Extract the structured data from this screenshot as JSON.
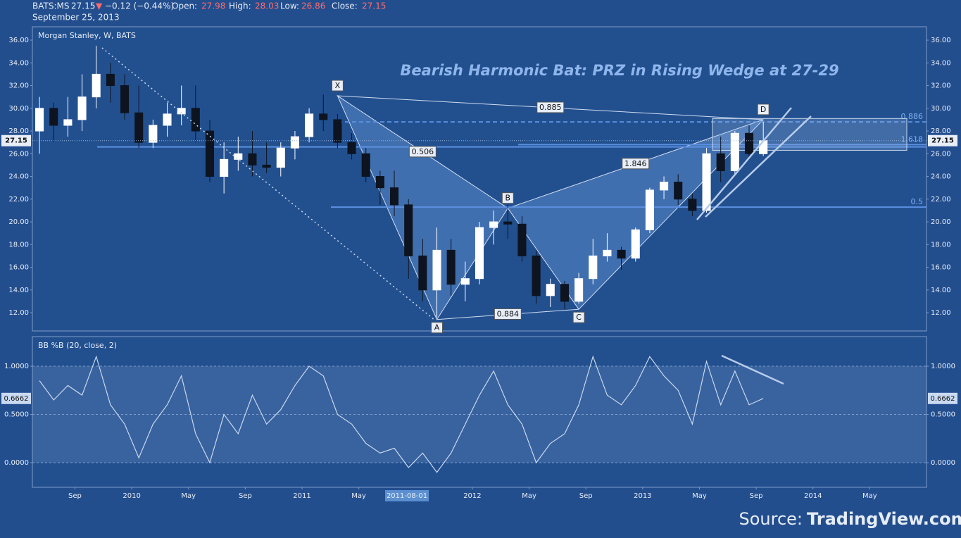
{
  "header": {
    "symbol": "BATS:MS",
    "last": "27.15",
    "arrow": "▼",
    "change": "−0.12 (−0.44%)",
    "open_label": "Open:",
    "open": "27.98",
    "high_label": "High:",
    "high": "28.03",
    "low_label": "Low:",
    "low": "26.86",
    "close_label": "Close:",
    "close": "27.15",
    "date": "September 25, 2013"
  },
  "crosshair": "2011-08-01",
  "source": {
    "prefix": "Source:",
    "name": "TradingView.com"
  },
  "chart_data": [
    {
      "type": "candlestick",
      "title": "Morgan Stanley, W, BATS",
      "annotation": "Bearish Harmonic Bat: PRZ in Rising Wedge at 27-29",
      "x": [
        "2009-06",
        "2009-07",
        "2009-08",
        "2009-09",
        "2009-10",
        "2009-11",
        "2009-12",
        "2010-01",
        "2010-02",
        "2010-03",
        "2010-04",
        "2010-05",
        "2010-06",
        "2010-07",
        "2010-08",
        "2010-09",
        "2010-10",
        "2010-11",
        "2010-12",
        "2011-01",
        "2011-02",
        "2011-03",
        "2011-04",
        "2011-05",
        "2011-06",
        "2011-07",
        "2011-08",
        "2011-09",
        "2011-10",
        "2011-11",
        "2011-12",
        "2012-01",
        "2012-02",
        "2012-03",
        "2012-04",
        "2012-05",
        "2012-06",
        "2012-07",
        "2012-08",
        "2012-09",
        "2012-10",
        "2012-11",
        "2012-12",
        "2013-01",
        "2013-02",
        "2013-03",
        "2013-04",
        "2013-05",
        "2013-06",
        "2013-07",
        "2013-08",
        "2013-09"
      ],
      "open": [
        28,
        30,
        28.5,
        29,
        31,
        33,
        32,
        29.6,
        27,
        28.5,
        29.5,
        30,
        28,
        24,
        25.5,
        26,
        25,
        24.8,
        26.5,
        27.5,
        29.5,
        29,
        27,
        26,
        24,
        23,
        21.5,
        17,
        14,
        17.5,
        14.5,
        15,
        19.5,
        20,
        19.8,
        17,
        13.5,
        14.5,
        13,
        15,
        17,
        17.5,
        16.8,
        19.3,
        22.8,
        23.5,
        22,
        21,
        26,
        24.5,
        27.8,
        26
      ],
      "high": [
        31,
        30.5,
        31,
        33,
        35.5,
        34,
        33,
        32,
        29,
        30.5,
        32,
        32,
        29,
        27,
        27.5,
        28,
        27,
        27,
        28,
        30,
        31.2,
        29.5,
        27.8,
        26.5,
        24.5,
        24.5,
        22,
        18.5,
        19.5,
        18.5,
        16.5,
        20,
        21,
        21.5,
        20.5,
        17.5,
        15,
        14.8,
        15.5,
        18.5,
        19,
        17.8,
        19.5,
        23,
        24,
        24.2,
        22.5,
        26.5,
        27.5,
        28,
        28.5,
        28.8
      ],
      "low": [
        26,
        27,
        27.5,
        28,
        30,
        30.5,
        29,
        26.5,
        26.5,
        27.5,
        28.5,
        27,
        23.5,
        22.5,
        24.5,
        24,
        24.3,
        24,
        25.5,
        27,
        28,
        26.5,
        25.5,
        23.5,
        21.5,
        20.5,
        15,
        13,
        11.6,
        13.5,
        13,
        14.5,
        18,
        18.5,
        16.5,
        12.8,
        12.5,
        12.3,
        12.8,
        14.5,
        16.5,
        15.8,
        16.5,
        19,
        22,
        21.5,
        20.5,
        20.8,
        23.5,
        24.2,
        25.5,
        25.8
      ],
      "close": [
        30,
        28.5,
        29,
        31,
        33,
        32,
        29.6,
        27,
        28.5,
        29.5,
        30,
        28,
        24,
        25.5,
        26,
        25,
        24.8,
        26.5,
        27.5,
        29.5,
        29,
        27,
        26,
        24,
        23,
        21.5,
        17,
        14,
        17.5,
        14.5,
        15,
        19.5,
        20,
        19.8,
        17,
        13.5,
        14.5,
        13,
        15,
        17,
        17.5,
        16.8,
        19.3,
        22.8,
        23.5,
        22,
        21,
        26,
        24.5,
        27.8,
        26,
        27.15
      ],
      "up_color": "#ffffff",
      "down_color": "#0d1420",
      "xlim": [
        "2009-06",
        "2014-09"
      ],
      "xticks": [
        {
          "value": "2009-09",
          "label": "Sep"
        },
        {
          "value": "2010-01",
          "label": "2010"
        },
        {
          "value": "2010-05",
          "label": "May"
        },
        {
          "value": "2010-09",
          "label": "Sep"
        },
        {
          "value": "2011-01",
          "label": "2011"
        },
        {
          "value": "2011-05",
          "label": "May"
        },
        {
          "value": "2012-01",
          "label": "2012"
        },
        {
          "value": "2012-05",
          "label": "May"
        },
        {
          "value": "2012-09",
          "label": "Sep"
        },
        {
          "value": "2013-01",
          "label": "2013"
        },
        {
          "value": "2013-05",
          "label": "May"
        },
        {
          "value": "2013-09",
          "label": "Sep"
        },
        {
          "value": "2014-01",
          "label": "2014"
        },
        {
          "value": "2014-05",
          "label": "May"
        }
      ],
      "ylim": [
        10.39,
        37.18
      ],
      "yticks": [
        {
          "value": 12,
          "label": "12.00"
        },
        {
          "value": 14,
          "label": "14.00"
        },
        {
          "value": 16,
          "label": "16.00"
        },
        {
          "value": 18,
          "label": "18.00"
        },
        {
          "value": 20,
          "label": "20.00"
        },
        {
          "value": 22,
          "label": "22.00"
        },
        {
          "value": 24,
          "label": "24.00"
        },
        {
          "value": 26,
          "label": "26.00"
        },
        {
          "value": 28,
          "label": "28.00"
        },
        {
          "value": 30,
          "label": "30.00"
        },
        {
          "value": 32,
          "label": "32.00"
        },
        {
          "value": 34,
          "label": "34.00"
        },
        {
          "value": 36,
          "label": "36.00"
        }
      ],
      "last_price": 27.15,
      "pattern": {
        "points": [
          {
            "label": "X",
            "x": "2011-03",
            "y": 31.1
          },
          {
            "label": "A",
            "x": "2011-10",
            "y": 11.4
          },
          {
            "label": "B",
            "x": "2012-03",
            "y": 21.2
          },
          {
            "label": "C",
            "x": "2012-08",
            "y": 12.3
          },
          {
            "label": "D",
            "x": "2013-09",
            "y": 29.0
          }
        ],
        "ratios": {
          "XB": 0.506,
          "AC": 0.884,
          "BD": 1.846,
          "XD": 0.885
        }
      },
      "levels": [
        {
          "label": "0.886",
          "value": 28.8
        },
        {
          "label": "1.618",
          "value": 26.8
        },
        {
          "label": "0.5",
          "value": 21.3
        }
      ],
      "support": 26.6
    },
    {
      "type": "line",
      "title": "BB %B (20, close, 2)",
      "color": "#c9d8ee",
      "x": [
        "2009-06",
        "2009-07",
        "2009-08",
        "2009-09",
        "2009-10",
        "2009-11",
        "2009-12",
        "2010-01",
        "2010-02",
        "2010-03",
        "2010-04",
        "2010-05",
        "2010-06",
        "2010-07",
        "2010-08",
        "2010-09",
        "2010-10",
        "2010-11",
        "2010-12",
        "2011-01",
        "2011-02",
        "2011-03",
        "2011-04",
        "2011-05",
        "2011-06",
        "2011-07",
        "2011-08",
        "2011-09",
        "2011-10",
        "2011-11",
        "2011-12",
        "2012-01",
        "2012-02",
        "2012-03",
        "2012-04",
        "2012-05",
        "2012-06",
        "2012-07",
        "2012-08",
        "2012-09",
        "2012-10",
        "2012-11",
        "2012-12",
        "2013-01",
        "2013-02",
        "2013-03",
        "2013-04",
        "2013-05",
        "2013-06",
        "2013-07",
        "2013-08",
        "2013-09"
      ],
      "values": [
        0.85,
        0.65,
        0.8,
        0.7,
        1.1,
        0.6,
        0.4,
        0.05,
        0.4,
        0.6,
        0.9,
        0.3,
        0.0,
        0.5,
        0.3,
        0.7,
        0.4,
        0.55,
        0.8,
        1.0,
        0.9,
        0.5,
        0.4,
        0.2,
        0.1,
        0.15,
        -0.05,
        0.1,
        -0.1,
        0.1,
        0.4,
        0.7,
        0.95,
        0.6,
        0.4,
        0.0,
        0.2,
        0.3,
        0.6,
        1.1,
        0.7,
        0.6,
        0.8,
        1.1,
        0.9,
        0.75,
        0.4,
        1.05,
        0.6,
        0.95,
        0.6,
        0.6662
      ],
      "ylim": [
        -0.255,
        1.307
      ],
      "yticks": [
        {
          "value": 0,
          "label": "0.0000"
        },
        {
          "value": 0.5,
          "label": "0.5000"
        },
        {
          "value": 1,
          "label": "1.0000"
        }
      ],
      "last_value": {
        "value": 0.6662,
        "label": "0.6662"
      }
    }
  ]
}
